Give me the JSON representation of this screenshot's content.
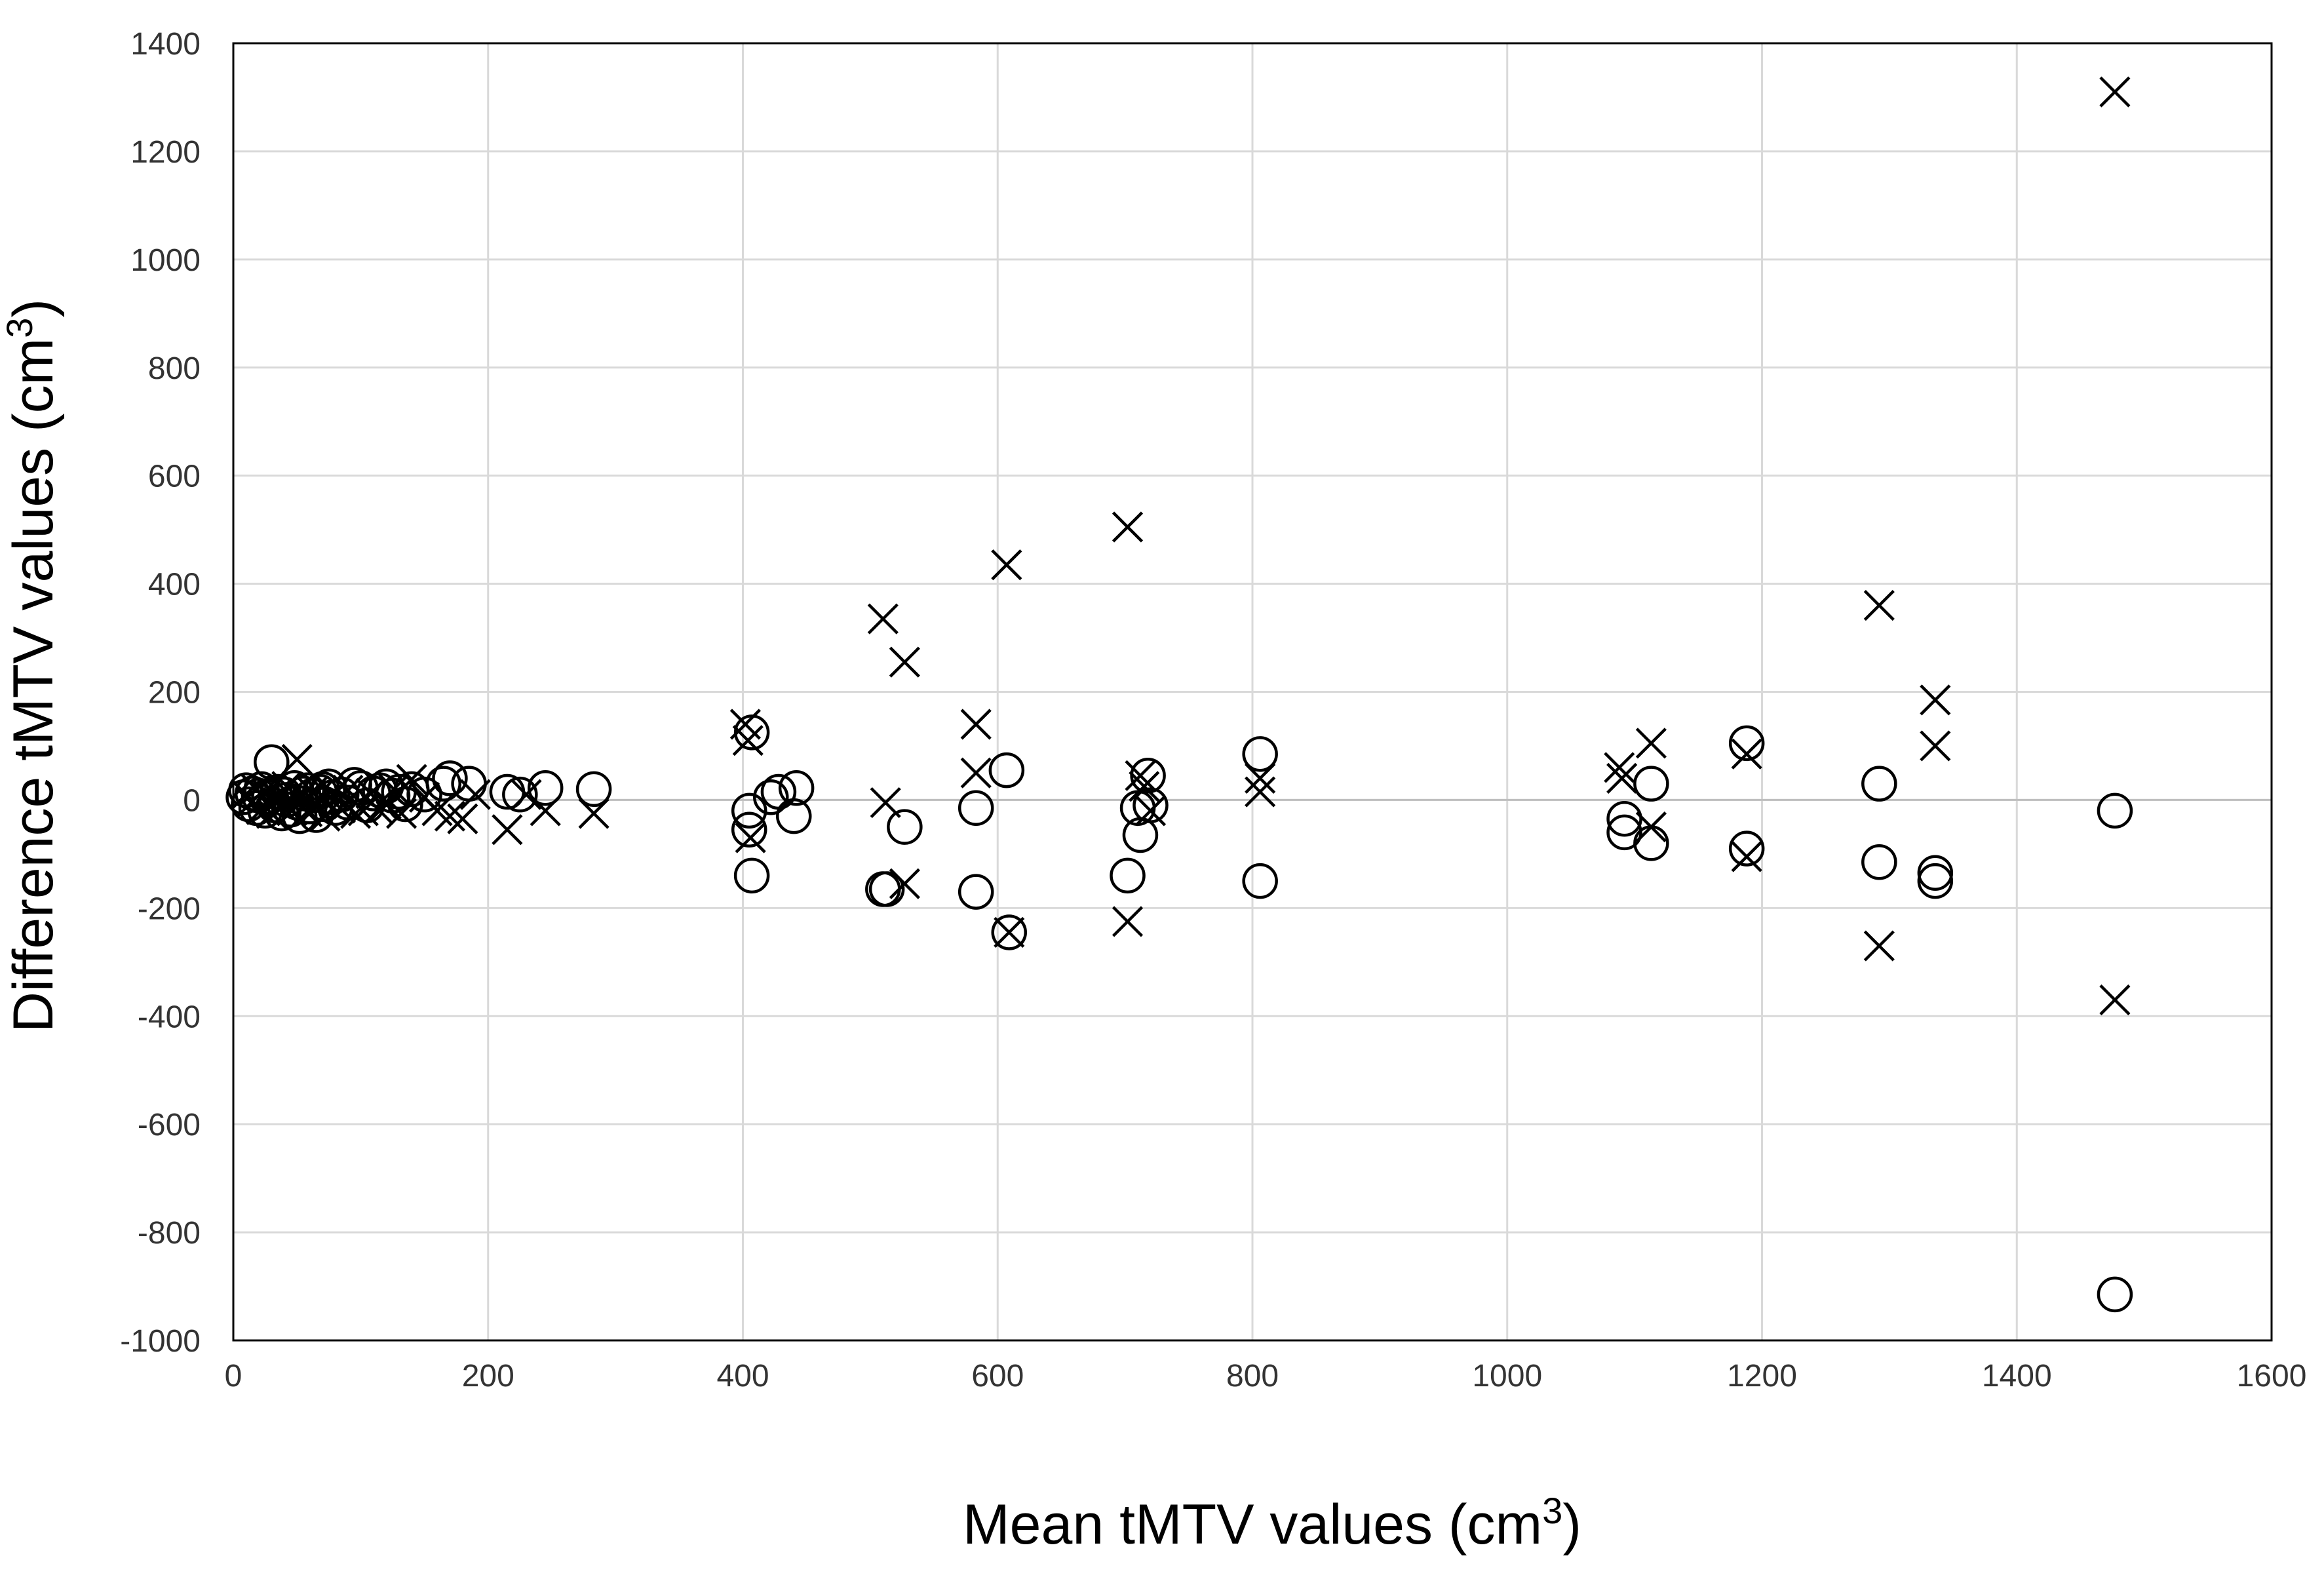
{
  "chart_data": {
    "type": "scatter",
    "title": "",
    "xlabel": {
      "text": "Mean tMTV values (cm",
      "sup": "3",
      "close": ")"
    },
    "ylabel": {
      "text": "Difference tMTV values (cm",
      "sup": "3",
      "close": ")"
    },
    "xlim": [
      0,
      1600
    ],
    "ylim": [
      -1000,
      1400
    ],
    "xticks": [
      0,
      200,
      400,
      600,
      800,
      1000,
      1200,
      1400,
      1600
    ],
    "yticks": [
      -1000,
      -800,
      -600,
      -400,
      -200,
      0,
      200,
      400,
      600,
      800,
      1000,
      1200,
      1400
    ],
    "grid": true,
    "legend": "none",
    "series": [
      {
        "name": "circle",
        "marker": "circle",
        "color": "#000000",
        "points": [
          [
            8,
            5
          ],
          [
            10,
            18
          ],
          [
            12,
            -8
          ],
          [
            15,
            12
          ],
          [
            18,
            -15
          ],
          [
            20,
            8
          ],
          [
            22,
            20
          ],
          [
            25,
            -20
          ],
          [
            28,
            5
          ],
          [
            30,
            70
          ],
          [
            32,
            -10
          ],
          [
            35,
            15
          ],
          [
            38,
            -25
          ],
          [
            40,
            10
          ],
          [
            42,
            0
          ],
          [
            45,
            -18
          ],
          [
            48,
            22
          ],
          [
            50,
            -5
          ],
          [
            52,
            -30
          ],
          [
            55,
            12
          ],
          [
            58,
            18
          ],
          [
            60,
            -12
          ],
          [
            62,
            8
          ],
          [
            65,
            -28
          ],
          [
            68,
            15
          ],
          [
            70,
            20
          ],
          [
            72,
            -8
          ],
          [
            75,
            25
          ],
          [
            78,
            5
          ],
          [
            80,
            -15
          ],
          [
            85,
            10
          ],
          [
            90,
            -5
          ],
          [
            95,
            28
          ],
          [
            100,
            22
          ],
          [
            105,
            -10
          ],
          [
            110,
            12
          ],
          [
            115,
            18
          ],
          [
            120,
            25
          ],
          [
            125,
            8
          ],
          [
            130,
            15
          ],
          [
            135,
            -8
          ],
          [
            140,
            20
          ],
          [
            150,
            10
          ],
          [
            165,
            30
          ],
          [
            170,
            40
          ],
          [
            185,
            30
          ],
          [
            215,
            15
          ],
          [
            225,
            10
          ],
          [
            245,
            22
          ],
          [
            283,
            20
          ],
          [
            405,
            -20
          ],
          [
            405,
            -55
          ],
          [
            407,
            -140
          ],
          [
            407,
            125
          ],
          [
            422,
            5
          ],
          [
            428,
            15
          ],
          [
            440,
            -30
          ],
          [
            442,
            22
          ],
          [
            510,
            -165
          ],
          [
            513,
            -165
          ],
          [
            527,
            -50
          ],
          [
            583,
            -15
          ],
          [
            583,
            -170
          ],
          [
            607,
            55
          ],
          [
            609,
            -245
          ],
          [
            702,
            -140
          ],
          [
            710,
            -15
          ],
          [
            712,
            -65
          ],
          [
            718,
            45
          ],
          [
            720,
            -10
          ],
          [
            806,
            85
          ],
          [
            806,
            -150
          ],
          [
            1092,
            -35
          ],
          [
            1092,
            -60
          ],
          [
            1113,
            30
          ],
          [
            1113,
            -80
          ],
          [
            1188,
            105
          ],
          [
            1188,
            -90
          ],
          [
            1292,
            30
          ],
          [
            1292,
            -115
          ],
          [
            1336,
            -135
          ],
          [
            1336,
            -150
          ],
          [
            1477,
            -20
          ],
          [
            1477,
            -915
          ]
        ]
      },
      {
        "name": "cross",
        "marker": "x",
        "color": "#000000",
        "points": [
          [
            10,
            10
          ],
          [
            14,
            -5
          ],
          [
            18,
            20
          ],
          [
            22,
            -18
          ],
          [
            26,
            12
          ],
          [
            30,
            -25
          ],
          [
            34,
            5
          ],
          [
            38,
            -12
          ],
          [
            42,
            25
          ],
          [
            46,
            -20
          ],
          [
            50,
            75
          ],
          [
            54,
            8
          ],
          [
            58,
            -22
          ],
          [
            62,
            15
          ],
          [
            66,
            -10
          ],
          [
            72,
            -30
          ],
          [
            78,
            10
          ],
          [
            84,
            -15
          ],
          [
            90,
            18
          ],
          [
            96,
            -25
          ],
          [
            102,
            -20
          ],
          [
            108,
            12
          ],
          [
            114,
            -18
          ],
          [
            120,
            -8
          ],
          [
            126,
            20
          ],
          [
            132,
            -25
          ],
          [
            140,
            38
          ],
          [
            150,
            5
          ],
          [
            160,
            -20
          ],
          [
            170,
            -30
          ],
          [
            180,
            -35
          ],
          [
            190,
            10
          ],
          [
            215,
            -55
          ],
          [
            230,
            10
          ],
          [
            245,
            -20
          ],
          [
            283,
            -25
          ],
          [
            402,
            140
          ],
          [
            404,
            110
          ],
          [
            406,
            -70
          ],
          [
            510,
            335
          ],
          [
            512,
            -5
          ],
          [
            527,
            255
          ],
          [
            527,
            -155
          ],
          [
            583,
            140
          ],
          [
            583,
            50
          ],
          [
            607,
            435
          ],
          [
            609,
            -245
          ],
          [
            702,
            505
          ],
          [
            702,
            -225
          ],
          [
            712,
            45
          ],
          [
            715,
            25
          ],
          [
            720,
            -20
          ],
          [
            806,
            40
          ],
          [
            806,
            15
          ],
          [
            1088,
            60
          ],
          [
            1090,
            40
          ],
          [
            1113,
            105
          ],
          [
            1113,
            -50
          ],
          [
            1188,
            85
          ],
          [
            1188,
            -105
          ],
          [
            1292,
            360
          ],
          [
            1292,
            -270
          ],
          [
            1336,
            185
          ],
          [
            1336,
            100
          ],
          [
            1477,
            1310
          ],
          [
            1477,
            -370
          ]
        ]
      }
    ]
  }
}
